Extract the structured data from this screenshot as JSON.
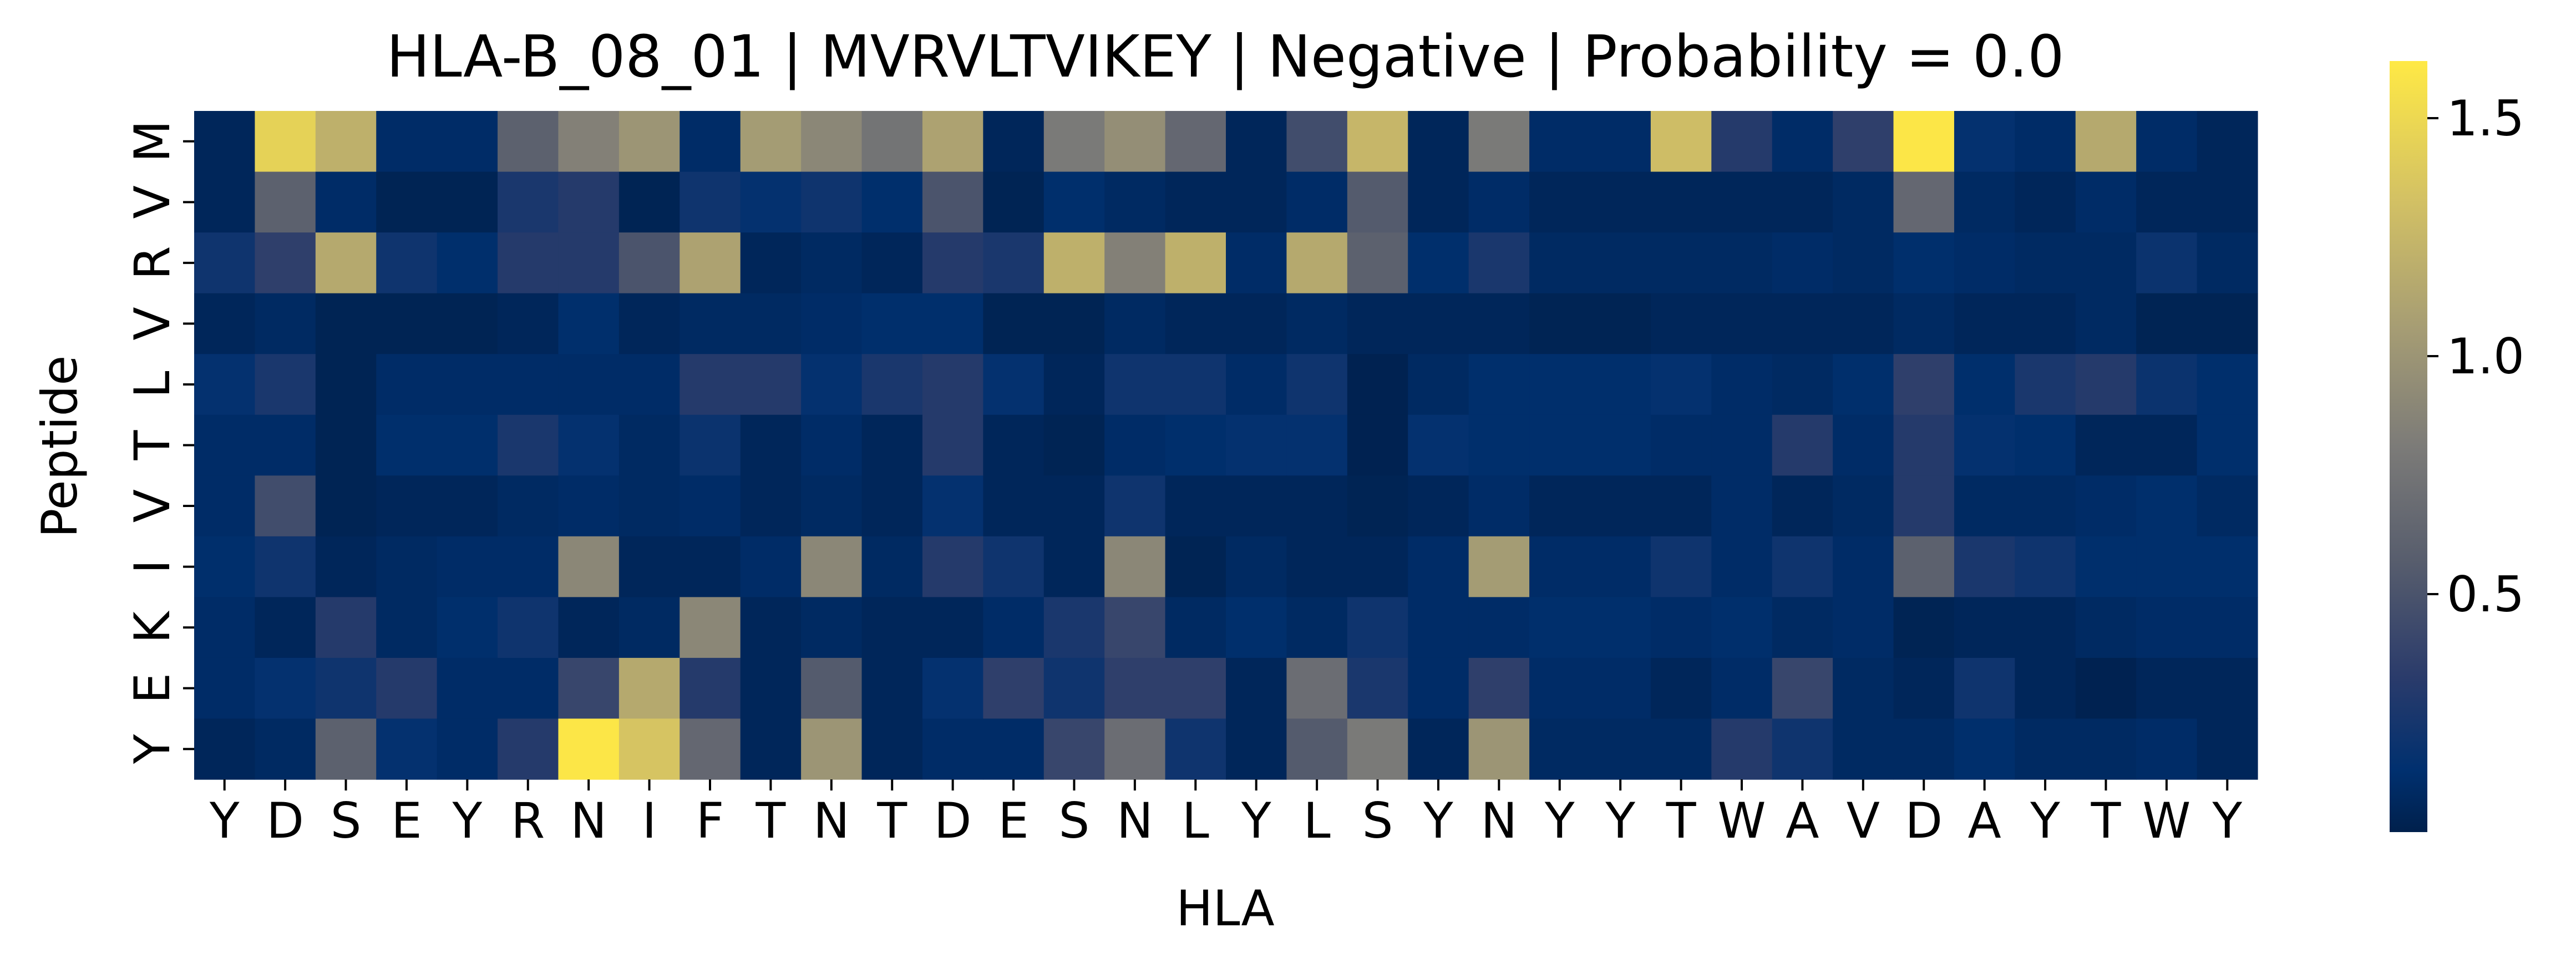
{
  "chart_data": {
    "type": "heatmap",
    "title": "HLA-B_08_01 | MVRVLTVIKEY | Negative | Probability = 0.0",
    "xlabel": "HLA",
    "ylabel": "Peptide",
    "x_categories": [
      "Y",
      "D",
      "S",
      "E",
      "Y",
      "R",
      "N",
      "I",
      "F",
      "T",
      "N",
      "T",
      "D",
      "E",
      "S",
      "N",
      "L",
      "Y",
      "L",
      "S",
      "Y",
      "N",
      "Y",
      "Y",
      "T",
      "W",
      "A",
      "V",
      "D",
      "A",
      "Y",
      "T",
      "W",
      "Y"
    ],
    "y_categories": [
      "M",
      "V",
      "R",
      "V",
      "L",
      "T",
      "V",
      "I",
      "K",
      "E",
      "Y"
    ],
    "colorbar": {
      "colormap": "cividis",
      "range": [
        0.0,
        1.62
      ],
      "ticks": [
        0.5,
        1.0,
        1.5
      ],
      "tick_labels": [
        "0.5",
        "1.0",
        "1.5"
      ]
    },
    "values": [
      [
        0.05,
        1.45,
        1.2,
        0.1,
        0.1,
        0.6,
        0.85,
        1.0,
        0.1,
        1.05,
        0.9,
        0.75,
        1.1,
        0.05,
        0.8,
        0.95,
        0.65,
        0.05,
        0.45,
        1.25,
        0.05,
        0.8,
        0.1,
        0.1,
        1.3,
        0.3,
        0.1,
        0.35,
        1.6,
        0.15,
        0.1,
        1.15,
        0.1,
        0.05
      ],
      [
        0.05,
        0.6,
        0.1,
        0.03,
        0.03,
        0.25,
        0.3,
        0.03,
        0.2,
        0.15,
        0.2,
        0.12,
        0.5,
        0.03,
        0.12,
        0.08,
        0.05,
        0.05,
        0.1,
        0.55,
        0.05,
        0.1,
        0.05,
        0.05,
        0.05,
        0.05,
        0.05,
        0.08,
        0.65,
        0.08,
        0.05,
        0.1,
        0.05,
        0.05
      ],
      [
        0.2,
        0.35,
        1.15,
        0.2,
        0.12,
        0.3,
        0.3,
        0.5,
        1.1,
        0.05,
        0.08,
        0.05,
        0.3,
        0.25,
        1.2,
        0.85,
        1.2,
        0.1,
        1.15,
        0.6,
        0.12,
        0.25,
        0.08,
        0.08,
        0.08,
        0.08,
        0.1,
        0.08,
        0.12,
        0.1,
        0.08,
        0.08,
        0.18,
        0.08
      ],
      [
        0.05,
        0.08,
        0.03,
        0.03,
        0.03,
        0.05,
        0.12,
        0.05,
        0.08,
        0.08,
        0.1,
        0.12,
        0.12,
        0.03,
        0.03,
        0.08,
        0.05,
        0.05,
        0.08,
        0.05,
        0.05,
        0.05,
        0.03,
        0.03,
        0.05,
        0.05,
        0.05,
        0.05,
        0.08,
        0.05,
        0.05,
        0.08,
        0.03,
        0.03
      ],
      [
        0.15,
        0.25,
        0.03,
        0.1,
        0.1,
        0.1,
        0.1,
        0.1,
        0.3,
        0.3,
        0.15,
        0.25,
        0.3,
        0.15,
        0.05,
        0.2,
        0.2,
        0.1,
        0.2,
        0.02,
        0.08,
        0.12,
        0.12,
        0.12,
        0.15,
        0.1,
        0.08,
        0.12,
        0.35,
        0.12,
        0.25,
        0.3,
        0.18,
        0.12
      ],
      [
        0.1,
        0.1,
        0.03,
        0.12,
        0.12,
        0.25,
        0.15,
        0.08,
        0.18,
        0.05,
        0.1,
        0.05,
        0.3,
        0.05,
        0.03,
        0.1,
        0.12,
        0.15,
        0.15,
        0.02,
        0.15,
        0.12,
        0.12,
        0.12,
        0.1,
        0.1,
        0.3,
        0.1,
        0.3,
        0.15,
        0.12,
        0.05,
        0.05,
        0.12
      ],
      [
        0.1,
        0.45,
        0.03,
        0.05,
        0.05,
        0.08,
        0.1,
        0.08,
        0.1,
        0.05,
        0.08,
        0.05,
        0.15,
        0.05,
        0.05,
        0.2,
        0.05,
        0.05,
        0.05,
        0.03,
        0.05,
        0.1,
        0.05,
        0.05,
        0.05,
        0.1,
        0.05,
        0.08,
        0.3,
        0.08,
        0.08,
        0.1,
        0.12,
        0.08
      ],
      [
        0.12,
        0.2,
        0.05,
        0.08,
        0.1,
        0.1,
        0.9,
        0.05,
        0.05,
        0.1,
        0.9,
        0.08,
        0.3,
        0.2,
        0.05,
        0.9,
        0.03,
        0.08,
        0.05,
        0.05,
        0.1,
        1.05,
        0.1,
        0.1,
        0.2,
        0.1,
        0.2,
        0.1,
        0.6,
        0.25,
        0.2,
        0.12,
        0.12,
        0.12
      ],
      [
        0.1,
        0.05,
        0.3,
        0.08,
        0.12,
        0.2,
        0.05,
        0.08,
        0.9,
        0.05,
        0.08,
        0.05,
        0.05,
        0.1,
        0.25,
        0.4,
        0.08,
        0.12,
        0.08,
        0.2,
        0.1,
        0.1,
        0.12,
        0.12,
        0.1,
        0.12,
        0.08,
        0.1,
        0.03,
        0.05,
        0.05,
        0.08,
        0.1,
        0.1
      ],
      [
        0.1,
        0.15,
        0.2,
        0.3,
        0.1,
        0.1,
        0.4,
        1.15,
        0.3,
        0.05,
        0.55,
        0.05,
        0.15,
        0.35,
        0.2,
        0.35,
        0.35,
        0.05,
        0.7,
        0.25,
        0.1,
        0.35,
        0.1,
        0.1,
        0.05,
        0.1,
        0.4,
        0.08,
        0.05,
        0.2,
        0.05,
        0.02,
        0.05,
        0.05
      ],
      [
        0.05,
        0.08,
        0.6,
        0.15,
        0.1,
        0.3,
        1.6,
        1.35,
        0.65,
        0.05,
        1.0,
        0.05,
        0.1,
        0.1,
        0.4,
        0.7,
        0.2,
        0.05,
        0.55,
        0.8,
        0.05,
        1.0,
        0.08,
        0.08,
        0.08,
        0.3,
        0.2,
        0.08,
        0.08,
        0.12,
        0.08,
        0.08,
        0.1,
        0.05
      ]
    ]
  }
}
